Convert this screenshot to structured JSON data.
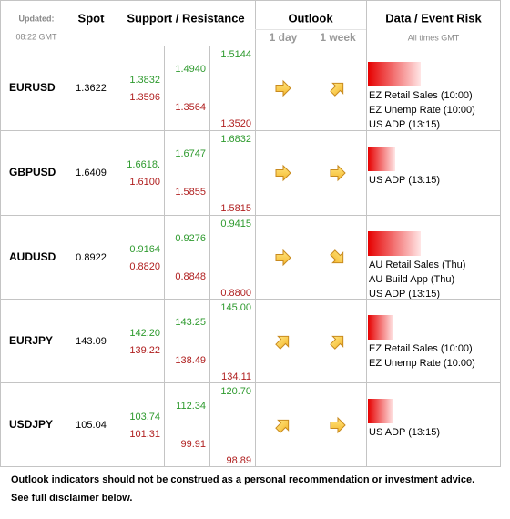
{
  "header": {
    "updated_label": "Updated:",
    "updated_time": "08:22 GMT",
    "spot": "Spot",
    "support_resistance": "Support / Resistance",
    "outlook": "Outlook",
    "outlook_1day": "1 day",
    "outlook_1week": "1 week",
    "data_event_risk": "Data / Event Risk",
    "times_note": "All times GMT"
  },
  "rows": [
    {
      "pair": "EURUSD",
      "spot": "1.3622",
      "levels": [
        [
          "1.3832",
          "1.3596"
        ],
        [
          "1.4940",
          "1.3564"
        ],
        [
          "1.5144",
          "1.3520"
        ]
      ],
      "events": [
        "EZ Retail Sales (10:00)",
        "EZ Unemp Rate (10:00)",
        "US ADP (13:15)"
      ]
    },
    {
      "pair": "GBPUSD",
      "spot": "1.6409",
      "levels": [
        [
          "1.6618.",
          "1.6100"
        ],
        [
          "1.6747",
          "1.5855"
        ],
        [
          "1.6832",
          "1.5815"
        ]
      ],
      "events": [
        "US ADP (13:15)"
      ]
    },
    {
      "pair": "AUDUSD",
      "spot": "0.8922",
      "levels": [
        [
          "0.9164",
          "0.8820"
        ],
        [
          "0.9276",
          "0.8848"
        ],
        [
          "0.9415",
          "0.8800"
        ]
      ],
      "events": [
        "AU Retail Sales (Thu)",
        "AU Build App (Thu)",
        "US ADP (13:15)"
      ]
    },
    {
      "pair": "EURJPY",
      "spot": "143.09",
      "levels": [
        [
          "142.20",
          "139.22"
        ],
        [
          "143.25",
          "138.49"
        ],
        [
          "145.00",
          "134.11"
        ]
      ],
      "events": [
        "EZ Retail Sales (10:00)",
        "EZ Unemp Rate (10:00)"
      ]
    },
    {
      "pair": "USDJPY",
      "spot": "105.04",
      "levels": [
        [
          "103.74",
          "101.31"
        ],
        [
          "112.34",
          "99.91"
        ],
        [
          "120.70",
          "98.89"
        ]
      ],
      "events": [
        "US ADP (13:15)"
      ]
    }
  ],
  "footer": [
    "Outlook indicators should not be construed as a personal recommendation or investment advice.",
    "See full disclaimer below."
  ]
}
